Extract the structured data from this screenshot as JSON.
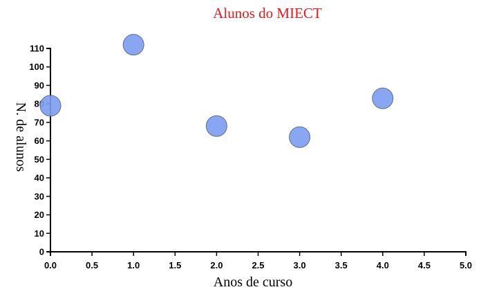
{
  "chart_data": {
    "type": "scatter",
    "title": "Alunos do MIECT",
    "xlabel": "Anos de curso",
    "ylabel": "N. de alunos",
    "xlim": [
      0,
      5
    ],
    "ylim": [
      0,
      110
    ],
    "xticks": [
      "0.0",
      "0.5",
      "1.0",
      "1.5",
      "2.0",
      "2.5",
      "3.0",
      "3.5",
      "4.0",
      "4.5",
      "5.0"
    ],
    "yticks": [
      "0",
      "10",
      "20",
      "30",
      "40",
      "50",
      "60",
      "70",
      "80",
      "90",
      "100",
      "110"
    ],
    "x": [
      0,
      1,
      2,
      3,
      4
    ],
    "y": [
      79,
      112,
      68,
      62,
      83
    ],
    "point_color": "#7b9cf0",
    "title_color": "#e8191c",
    "grid": false,
    "legend": "none"
  }
}
